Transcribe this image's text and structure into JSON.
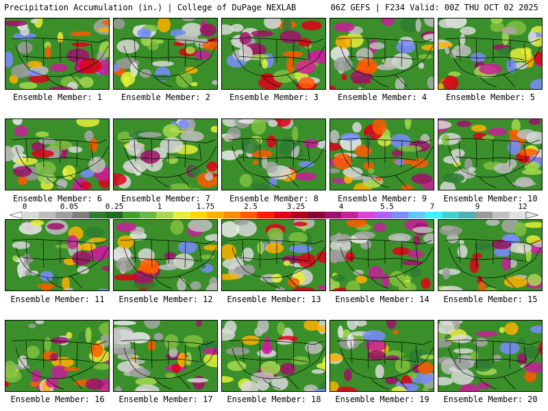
{
  "header": {
    "left": "Precipitation Accumulation (in.) | College of DuPage NEXLAB",
    "right": "06Z GEFS | F234 Valid: 00Z THU OCT 02 2025"
  },
  "colorbar": {
    "ticks": [
      "0",
      "0.05",
      "0.25",
      "1",
      "1.75",
      "2.5",
      "3.25",
      "4",
      "5.5",
      "7",
      "9",
      "12"
    ],
    "colors": [
      "#d9d9d9",
      "#bdbdbd",
      "#9e9e9e",
      "#7f7f7f",
      "#2e7d32",
      "#1f6b1f",
      "#3f9f2f",
      "#68b84a",
      "#a6d94f",
      "#e6f03a",
      "#ffd700",
      "#ffb000",
      "#ff8c00",
      "#ff5a00",
      "#ff1e00",
      "#e0001a",
      "#b5001c",
      "#8b0030",
      "#a0106a",
      "#c81e9a",
      "#e040e0",
      "#b060ff",
      "#7a8cff",
      "#60c8ff",
      "#40f0ff",
      "#40d0d0",
      "#50b0b0",
      "#9a9a9a",
      "#c0c0c0",
      "#e0e0e0"
    ]
  },
  "panels": [
    {
      "label": "Ensemble Member: 1"
    },
    {
      "label": "Ensemble Member: 2"
    },
    {
      "label": "Ensemble Member: 3"
    },
    {
      "label": "Ensemble Member: 4"
    },
    {
      "label": "Ensemble Member: 5"
    },
    {
      "label": "Ensemble Member: 6"
    },
    {
      "label": "Ensemble Member: 7"
    },
    {
      "label": "Ensemble Member: 8"
    },
    {
      "label": "Ensemble Member: 9"
    },
    {
      "label": "Ensemble Member: 10"
    },
    {
      "label": "Ensemble Member: 11"
    },
    {
      "label": "Ensemble Member: 12"
    },
    {
      "label": "Ensemble Member: 13"
    },
    {
      "label": "Ensemble Member: 14"
    },
    {
      "label": "Ensemble Member: 15"
    },
    {
      "label": "Ensemble Member: 16"
    },
    {
      "label": "Ensemble Member: 17"
    },
    {
      "label": "Ensemble Member: 18"
    },
    {
      "label": "Ensemble Member: 19"
    },
    {
      "label": "Ensemble Member: 20"
    }
  ]
}
